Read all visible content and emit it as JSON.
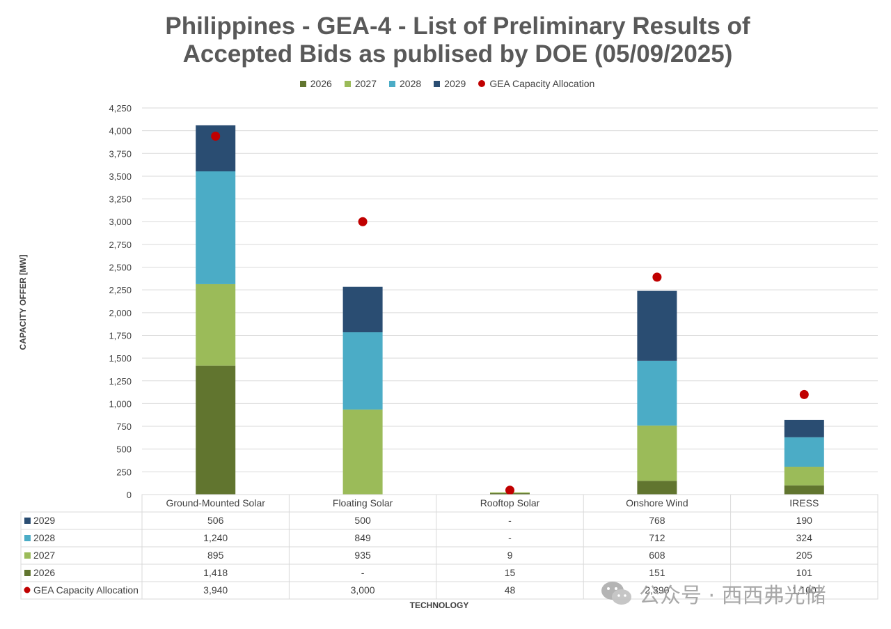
{
  "title_line1": "Philippines - GEA-4 - List of Preliminary Results of",
  "title_line2": "Accepted Bids as publised by DOE (05/09/2025)",
  "watermark_text": "公众号 · 西西弗光储",
  "chart_data": {
    "type": "bar",
    "stacked": true,
    "ylabel": "CAPACITY OFFER [MW]",
    "xlabel": "TECHNOLOGY",
    "ylim": [
      0,
      4250
    ],
    "yticks": [
      0,
      250,
      500,
      750,
      1000,
      1250,
      1500,
      1750,
      2000,
      2250,
      2500,
      2750,
      3000,
      3250,
      3500,
      3750,
      4000,
      4250
    ],
    "ytick_labels": [
      "0",
      "250",
      "500",
      "750",
      "1,000",
      "1,250",
      "1,500",
      "1,750",
      "2,000",
      "2,250",
      "2,500",
      "2,750",
      "3,000",
      "3,250",
      "3,500",
      "3,750",
      "4,000",
      "4,250"
    ],
    "grid": true,
    "legend_position": "top",
    "categories": [
      "Ground-Mounted Solar",
      "Floating Solar",
      "Rooftop Solar",
      "Onshore Wind",
      "IRESS"
    ],
    "series": [
      {
        "name": "2026",
        "color": "#61752f",
        "values": [
          1418,
          0,
          15,
          151,
          101
        ]
      },
      {
        "name": "2027",
        "color": "#9bbb59",
        "values": [
          895,
          935,
          9,
          608,
          205
        ]
      },
      {
        "name": "2028",
        "color": "#4bacc6",
        "values": [
          1240,
          849,
          0,
          712,
          324
        ]
      },
      {
        "name": "2029",
        "color": "#2a4d72",
        "values": [
          506,
          500,
          0,
          768,
          190
        ]
      }
    ],
    "markers": {
      "name": "GEA Capacity Allocation",
      "color": "#c00000",
      "values": [
        3940,
        3000,
        48,
        2390,
        1100
      ]
    },
    "table": {
      "rows": [
        {
          "name": "2029",
          "color": "#2a4d72",
          "shape": "square",
          "cells": [
            "506",
            "500",
            "-",
            "768",
            "190"
          ]
        },
        {
          "name": "2028",
          "color": "#4bacc6",
          "shape": "square",
          "cells": [
            "1,240",
            "849",
            "-",
            "712",
            "324"
          ]
        },
        {
          "name": "2027",
          "color": "#9bbb59",
          "shape": "square",
          "cells": [
            "895",
            "935",
            "9",
            "608",
            "205"
          ]
        },
        {
          "name": "2026",
          "color": "#61752f",
          "shape": "square",
          "cells": [
            "1,418",
            "-",
            "15",
            "151",
            "101"
          ]
        },
        {
          "name": "GEA Capacity Allocation",
          "color": "#c00000",
          "shape": "circle",
          "cells": [
            "3,940",
            "3,000",
            "48",
            "2,390",
            "1,100"
          ]
        }
      ]
    }
  }
}
